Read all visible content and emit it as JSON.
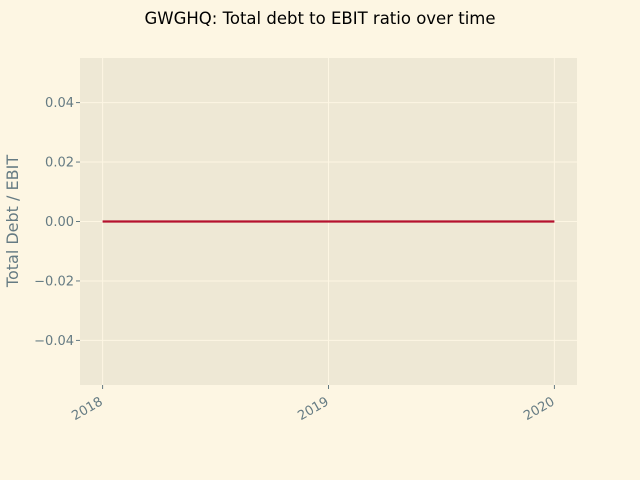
{
  "chart_data": {
    "type": "line",
    "title": "GWGHQ: Total debt to EBIT ratio over time",
    "xlabel": "",
    "ylabel": "Total Debt / EBIT",
    "x_ticks": [
      "2018",
      "2019",
      "2020"
    ],
    "y_ticks": [
      "0.04",
      "0.02",
      "0.00",
      "−0.02",
      "−0.04"
    ],
    "y_tick_values": [
      0.04,
      0.02,
      0.0,
      -0.02,
      -0.04
    ],
    "xlim": [
      2017.9,
      2020.1
    ],
    "ylim": [
      -0.055,
      0.055
    ],
    "grid": true,
    "series": [
      {
        "x": [
          2018,
          2019,
          2020
        ],
        "values": [
          0.0,
          0.0,
          0.0
        ],
        "color": "#b5112f"
      }
    ],
    "colors": {
      "figure_background": "#fdf6e3",
      "plot_background": "#eee8d5",
      "grid": "#fdf6e3",
      "tick_text": "#657b83",
      "title_text": "#000000"
    }
  }
}
